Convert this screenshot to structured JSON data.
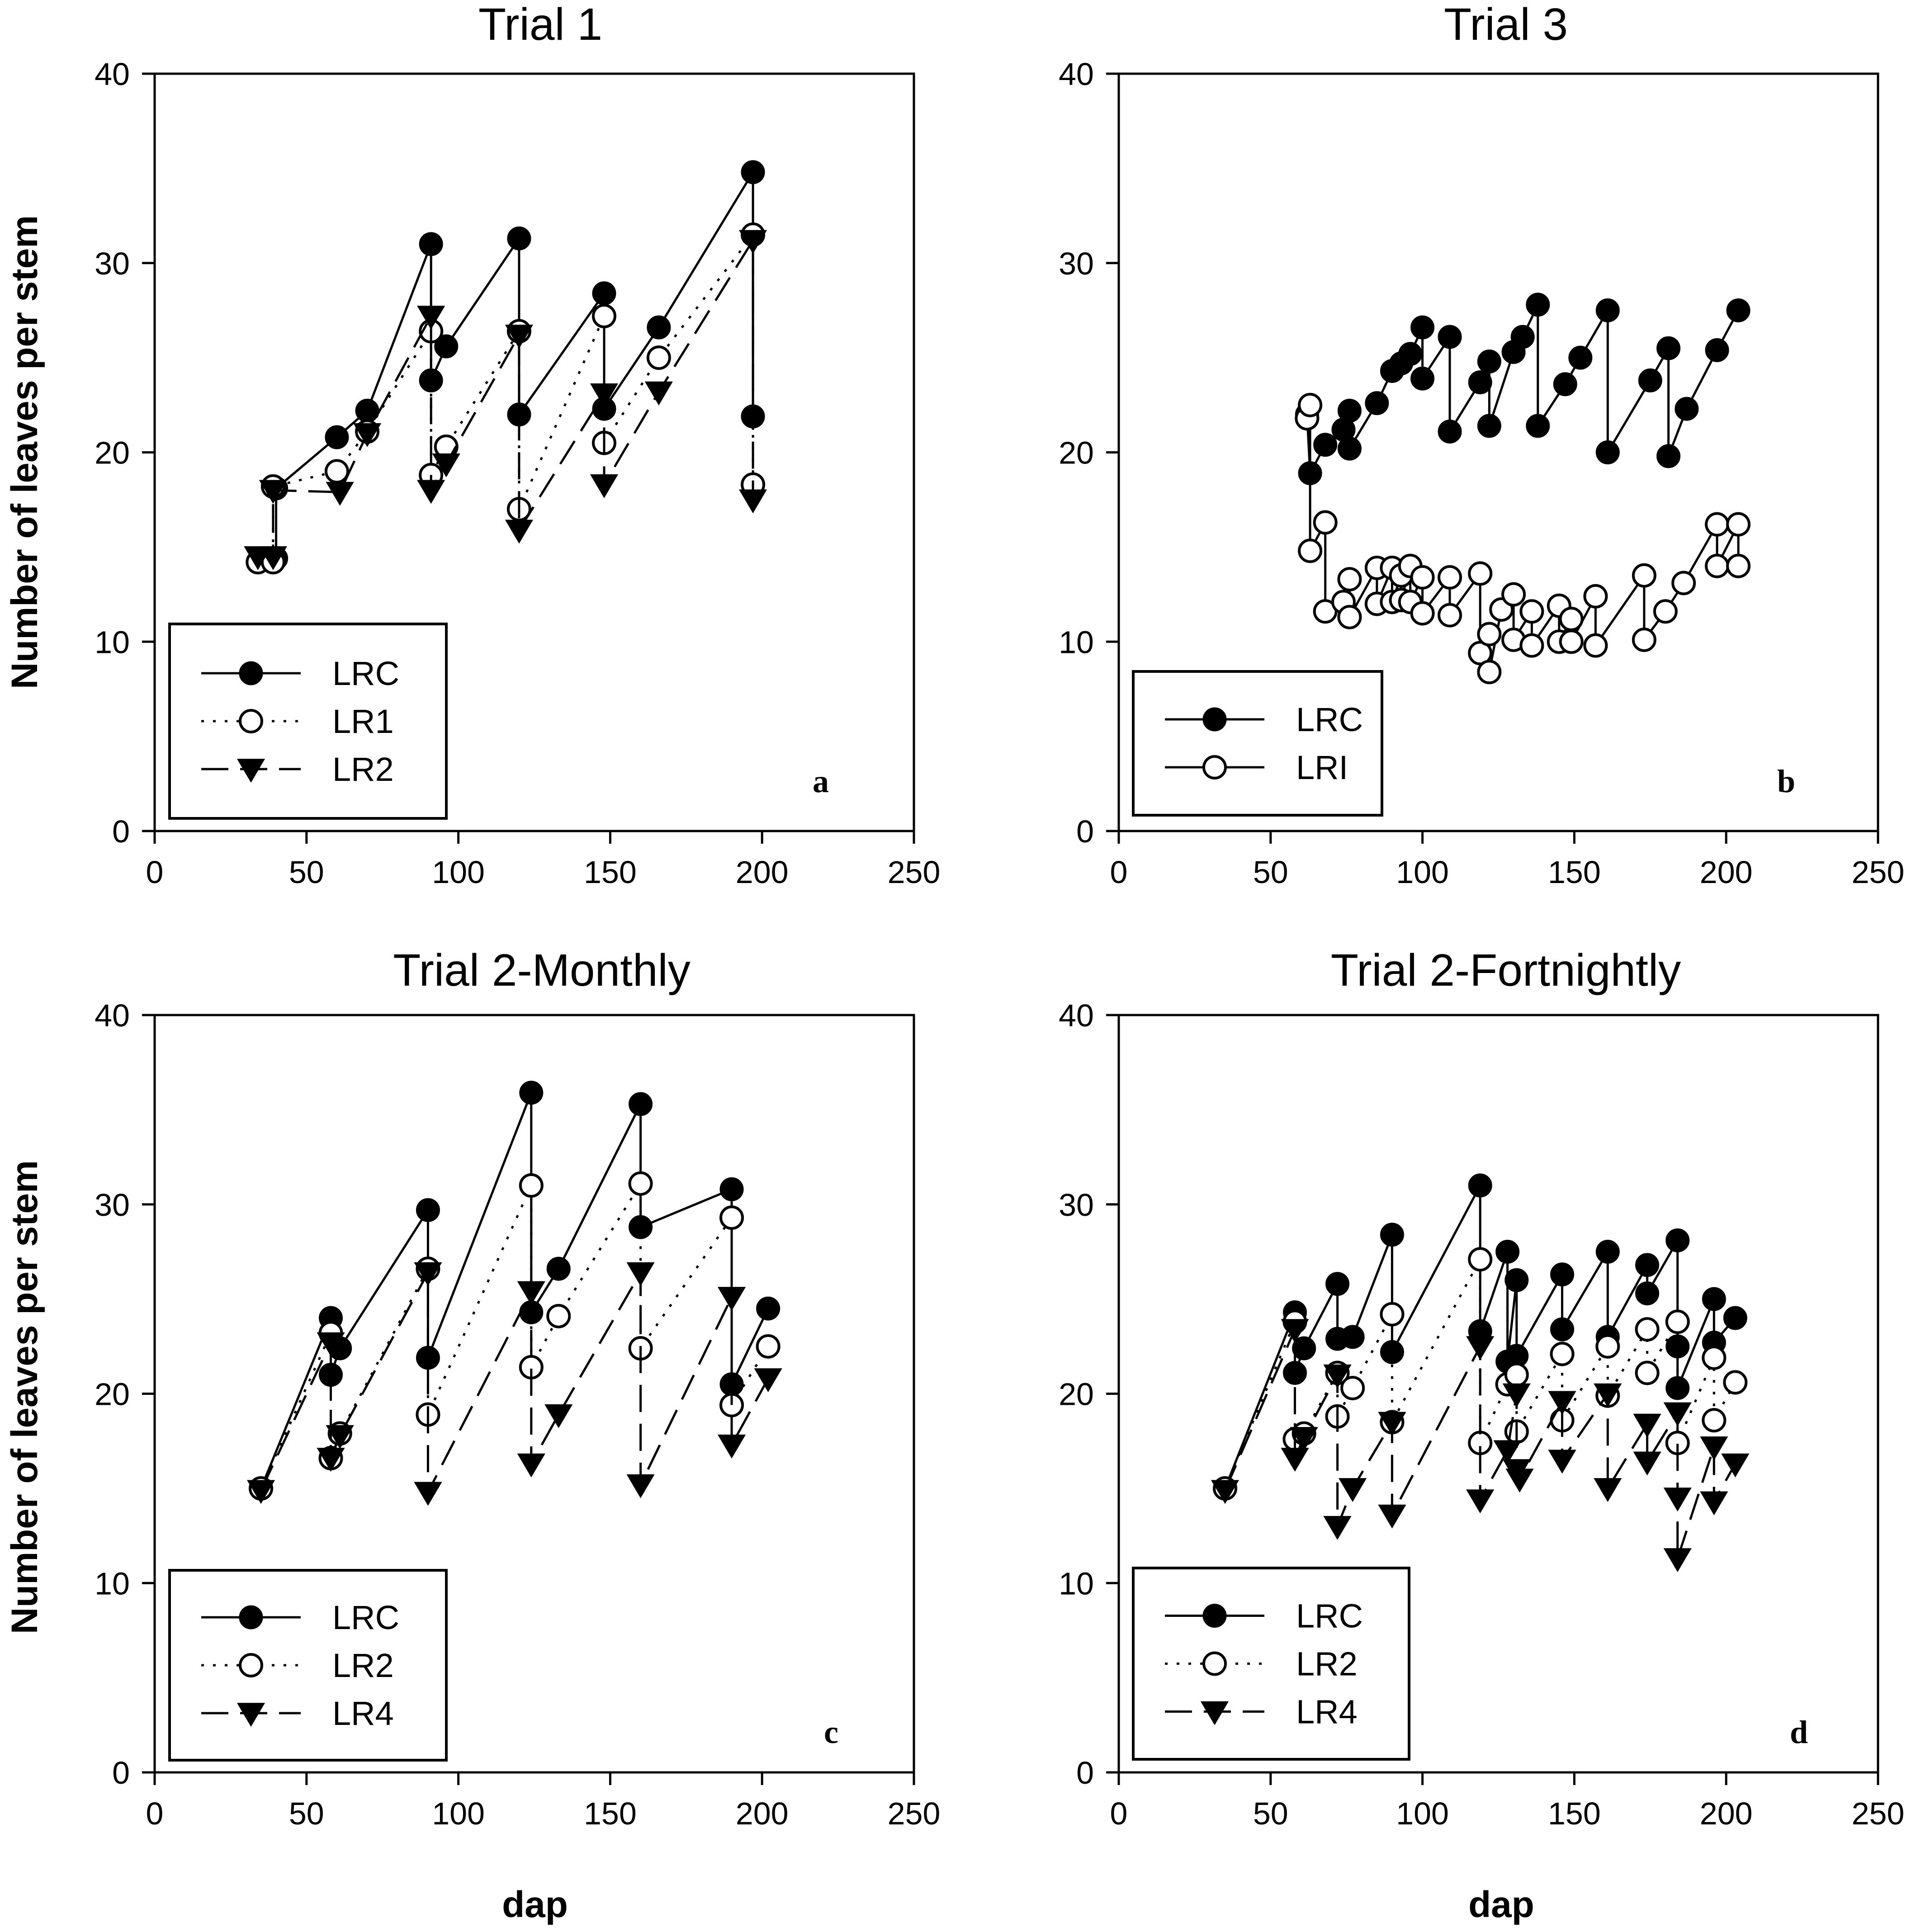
{
  "figure": {
    "xlabel": "dap",
    "ylabel": "Number of leaves per stem"
  },
  "chart_data": [
    {
      "type": "line",
      "title": "Trial 1",
      "panel_letter": "a",
      "xlabel": "dap",
      "ylabel": "Number of leaves per stem",
      "xlim": [
        0,
        250
      ],
      "ylim": [
        0,
        40
      ],
      "xticks": [
        0,
        50,
        100,
        150,
        200,
        250
      ],
      "yticks": [
        0,
        10,
        20,
        30,
        40
      ],
      "legend_position": "bottom-left",
      "series": [
        {
          "name": "LRC",
          "marker": "filled-circle",
          "line": "solid",
          "points": [
            [
              35,
              14.4
            ],
            [
              40,
              14.4
            ],
            [
              40,
              18.1
            ],
            [
              60,
              20.8
            ],
            [
              70,
              22.2
            ],
            [
              91,
              31
            ],
            [
              91,
              23.8
            ],
            [
              96,
              25.6
            ],
            [
              120,
              31.3
            ],
            [
              120,
              22
            ],
            [
              148,
              28.4
            ],
            [
              148,
              22.3
            ],
            [
              166,
              26.6
            ],
            [
              197,
              34.8
            ],
            [
              197,
              21.9
            ]
          ]
        },
        {
          "name": "LR1",
          "marker": "open-circle",
          "line": "dotted",
          "points": [
            [
              34,
              14.2
            ],
            [
              39,
              14.2
            ],
            [
              39,
              18.2
            ],
            [
              60,
              19
            ],
            [
              70,
              21.1
            ],
            [
              91,
              26.4
            ],
            [
              91,
              18.8
            ],
            [
              96,
              20.3
            ],
            [
              120,
              26.4
            ],
            [
              120,
              17
            ],
            [
              148,
              27.2
            ],
            [
              148,
              20.5
            ],
            [
              166,
              25
            ],
            [
              197,
              31.5
            ],
            [
              197,
              18.3
            ]
          ]
        },
        {
          "name": "LR2",
          "marker": "filled-triangle",
          "line": "dashed",
          "points": [
            [
              34,
              14.5
            ],
            [
              39,
              14.5
            ],
            [
              39,
              18
            ],
            [
              61,
              17.9
            ],
            [
              70,
              21
            ],
            [
              91,
              27.2
            ],
            [
              91,
              18
            ],
            [
              96,
              19.4
            ],
            [
              120,
              26.2
            ],
            [
              120,
              15.9
            ],
            [
              148,
              23.1
            ],
            [
              148,
              18.3
            ],
            [
              166,
              23.2
            ],
            [
              197,
              31.2
            ],
            [
              197,
              17.5
            ]
          ]
        }
      ]
    },
    {
      "type": "line",
      "title": "Trial 3",
      "panel_letter": "b",
      "xlabel": "dap",
      "ylabel": "Number of leaves per stem",
      "xlim": [
        0,
        250
      ],
      "ylim": [
        0,
        40
      ],
      "xticks": [
        0,
        50,
        100,
        150,
        200,
        250
      ],
      "yticks": [
        0,
        10,
        20,
        30,
        40
      ],
      "legend_position": "bottom-left",
      "series": [
        {
          "name": "LRC",
          "marker": "filled-circle",
          "line": "solid",
          "points": [
            [
              62,
              22
            ],
            [
              63,
              18.9
            ],
            [
              68,
              20.4
            ],
            [
              74,
              21.2
            ],
            [
              76,
              22.2
            ],
            [
              76,
              20.2
            ],
            [
              85,
              22.6
            ],
            [
              90,
              24.3
            ],
            [
              93,
              24.7
            ],
            [
              96,
              25.2
            ],
            [
              100,
              26.6
            ],
            [
              100,
              23.9
            ],
            [
              109,
              26.1
            ],
            [
              109,
              21.1
            ],
            [
              119,
              23.7
            ],
            [
              122,
              24.8
            ],
            [
              122,
              21.4
            ],
            [
              130,
              25.3
            ],
            [
              133,
              26.1
            ],
            [
              138,
              27.8
            ],
            [
              138,
              21.4
            ],
            [
              147,
              23.6
            ],
            [
              152,
              25
            ],
            [
              161,
              27.5
            ],
            [
              161,
              20
            ],
            [
              175,
              23.8
            ],
            [
              181,
              25.5
            ],
            [
              181,
              19.8
            ],
            [
              187,
              22.3
            ],
            [
              197,
              25.4
            ],
            [
              204,
              27.5
            ]
          ]
        },
        {
          "name": "LRI",
          "marker": "open-circle",
          "line": "solid",
          "points": [
            [
              62,
              21.8
            ],
            [
              63,
              22.5
            ],
            [
              63,
              14.8
            ],
            [
              68,
              16.3
            ],
            [
              68,
              11.6
            ],
            [
              74,
              12.1
            ],
            [
              76,
              13.3
            ],
            [
              76,
              11.3
            ],
            [
              85,
              13.9
            ],
            [
              85,
              12
            ],
            [
              90,
              13.9
            ],
            [
              90,
              12.1
            ],
            [
              93,
              13.5
            ],
            [
              93,
              12.2
            ],
            [
              96,
              14
            ],
            [
              96,
              12.1
            ],
            [
              100,
              13.4
            ],
            [
              100,
              11.5
            ],
            [
              109,
              13.4
            ],
            [
              109,
              11.4
            ],
            [
              119,
              13.6
            ],
            [
              119,
              9.4
            ],
            [
              122,
              10.4
            ],
            [
              122,
              8.4
            ],
            [
              126,
              11.7
            ],
            [
              130,
              12.5
            ],
            [
              130,
              10.1
            ],
            [
              136,
              11.6
            ],
            [
              136,
              9.8
            ],
            [
              145,
              11.9
            ],
            [
              145,
              10
            ],
            [
              149,
              11.2
            ],
            [
              149,
              10
            ],
            [
              157,
              12.4
            ],
            [
              157,
              9.8
            ],
            [
              173,
              13.5
            ],
            [
              173,
              10.1
            ],
            [
              180,
              11.6
            ],
            [
              186,
              13.1
            ],
            [
              197,
              16.2
            ],
            [
              197,
              14
            ],
            [
              204,
              16.2
            ],
            [
              204,
              14
            ]
          ]
        }
      ]
    },
    {
      "type": "line",
      "title": "Trial 2-Monthly",
      "panel_letter": "c",
      "xlabel": "dap",
      "ylabel": "Number of leaves per stem",
      "xlim": [
        0,
        250
      ],
      "ylim": [
        0,
        40
      ],
      "xticks": [
        0,
        50,
        100,
        150,
        200,
        250
      ],
      "yticks": [
        0,
        10,
        20,
        30,
        40
      ],
      "legend_position": "bottom-left",
      "series": [
        {
          "name": "LRC",
          "marker": "filled-circle",
          "line": "solid",
          "points": [
            [
              35,
              15
            ],
            [
              58,
              24
            ],
            [
              58,
              21
            ],
            [
              61,
              22.4
            ],
            [
              90,
              29.7
            ],
            [
              90,
              21.9
            ],
            [
              124,
              35.9
            ],
            [
              124,
              24.3
            ],
            [
              133,
              26.6
            ],
            [
              160,
              35.3
            ],
            [
              160,
              28.8
            ],
            [
              190,
              30.8
            ],
            [
              190,
              20.5
            ],
            [
              202,
              24.5
            ]
          ]
        },
        {
          "name": "LR2",
          "marker": "open-circle",
          "line": "dotted",
          "points": [
            [
              35,
              15
            ],
            [
              58,
              23.2
            ],
            [
              58,
              16.6
            ],
            [
              61,
              17.9
            ],
            [
              90,
              26.6
            ],
            [
              90,
              18.9
            ],
            [
              124,
              31
            ],
            [
              124,
              21.4
            ],
            [
              133,
              24.1
            ],
            [
              160,
              31.1
            ],
            [
              160,
              22.4
            ],
            [
              190,
              29.3
            ],
            [
              190,
              19.4
            ],
            [
              202,
              22.5
            ]
          ]
        },
        {
          "name": "LR4",
          "marker": "filled-triangle",
          "line": "dashed",
          "points": [
            [
              35,
              14.9
            ],
            [
              58,
              22.7
            ],
            [
              58,
              16.6
            ],
            [
              61,
              17.8
            ],
            [
              90,
              26.4
            ],
            [
              90,
              14.8
            ],
            [
              124,
              25.4
            ],
            [
              124,
              16.3
            ],
            [
              133,
              18.9
            ],
            [
              160,
              26.4
            ],
            [
              160,
              15.2
            ],
            [
              190,
              25.1
            ],
            [
              190,
              17.3
            ],
            [
              202,
              20.8
            ]
          ]
        }
      ]
    },
    {
      "type": "line",
      "title": "Trial 2-Fortnightly",
      "panel_letter": "d",
      "xlabel": "dap",
      "ylabel": "Number of leaves per stem",
      "xlim": [
        0,
        250
      ],
      "ylim": [
        0,
        40
      ],
      "xticks": [
        0,
        50,
        100,
        150,
        200,
        250
      ],
      "yticks": [
        0,
        10,
        20,
        30,
        40
      ],
      "legend_position": "bottom-left",
      "series": [
        {
          "name": "LRC",
          "marker": "filled-circle",
          "line": "solid",
          "points": [
            [
              35,
              15
            ],
            [
              58,
              24.3
            ],
            [
              58,
              21.1
            ],
            [
              61,
              22.4
            ],
            [
              72,
              25.8
            ],
            [
              72,
              22.9
            ],
            [
              77,
              23
            ],
            [
              90,
              28.4
            ],
            [
              90,
              22.2
            ],
            [
              119,
              31
            ],
            [
              119,
              23.3
            ],
            [
              128,
              27.5
            ],
            [
              128,
              21.7
            ],
            [
              131,
              26
            ],
            [
              131,
              22
            ],
            [
              146,
              26.3
            ],
            [
              146,
              23.4
            ],
            [
              161,
              27.5
            ],
            [
              161,
              23
            ],
            [
              174,
              26.8
            ],
            [
              174,
              25.3
            ],
            [
              184,
              28.1
            ],
            [
              184,
              22.5
            ],
            [
              184,
              20.3
            ],
            [
              196,
              25
            ],
            [
              196,
              22.7
            ],
            [
              203,
              24
            ]
          ]
        },
        {
          "name": "LR2",
          "marker": "open-circle",
          "line": "dotted",
          "points": [
            [
              35,
              15
            ],
            [
              58,
              23.8
            ],
            [
              58,
              17.6
            ],
            [
              61,
              17.9
            ],
            [
              72,
              21.1
            ],
            [
              72,
              18.8
            ],
            [
              77,
              20.3
            ],
            [
              90,
              24.2
            ],
            [
              90,
              18.5
            ],
            [
              119,
              27.1
            ],
            [
              119,
              17.4
            ],
            [
              128,
              20.5
            ],
            [
              131,
              21
            ],
            [
              131,
              18
            ],
            [
              146,
              22.1
            ],
            [
              146,
              18.6
            ],
            [
              161,
              22.5
            ],
            [
              161,
              19.9
            ],
            [
              174,
              23.4
            ],
            [
              174,
              21.1
            ],
            [
              184,
              23.8
            ],
            [
              184,
              17.4
            ],
            [
              196,
              21.9
            ],
            [
              196,
              18.6
            ],
            [
              203,
              20.6
            ]
          ]
        },
        {
          "name": "LR4",
          "marker": "filled-triangle",
          "line": "dashed",
          "points": [
            [
              35,
              14.9
            ],
            [
              58,
              23.4
            ],
            [
              58,
              16.6
            ],
            [
              61,
              17.7
            ],
            [
              72,
              21
            ],
            [
              72,
              13
            ],
            [
              77,
              15
            ],
            [
              90,
              18.5
            ],
            [
              90,
              13.6
            ],
            [
              119,
              22.5
            ],
            [
              119,
              14.4
            ],
            [
              128,
              17
            ],
            [
              131,
              20
            ],
            [
              131,
              16
            ],
            [
              132,
              15.5
            ],
            [
              146,
              19.6
            ],
            [
              146,
              16.5
            ],
            [
              161,
              20
            ],
            [
              161,
              15
            ],
            [
              174,
              18.4
            ],
            [
              174,
              16.4
            ],
            [
              184,
              19
            ],
            [
              184,
              14.5
            ],
            [
              184,
              11.3
            ],
            [
              196,
              17.2
            ],
            [
              196,
              14.3
            ],
            [
              203,
              16.3
            ]
          ]
        }
      ]
    }
  ]
}
